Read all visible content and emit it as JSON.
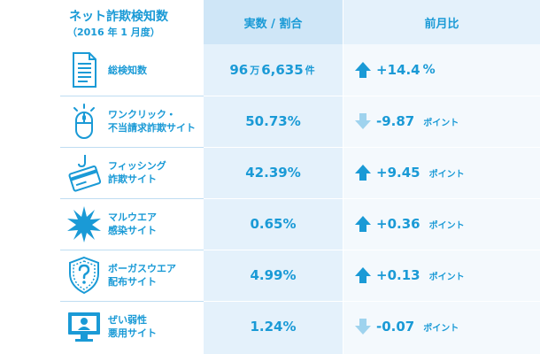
{
  "header": {
    "title": "ネット詐欺検知数",
    "subtitle": "（2016 年 1 月度）",
    "col_value": "実数 / 割合",
    "col_change": "前月比"
  },
  "colors": {
    "primary": "#1a9ad6",
    "arrow_up": "#1a9ad6",
    "arrow_down": "#9fd3ee",
    "value_column_bg": "#e4f1fb"
  },
  "rows": [
    {
      "icon": "document-icon",
      "label_line1": "総検知数",
      "label_line2": "",
      "value_num1": "96",
      "value_unit1": "万",
      "value_num2": "6,635",
      "value_unit2": "件",
      "value": "",
      "direction": "up",
      "change": "+14.4",
      "change_unit": "%"
    },
    {
      "icon": "mouse-click-icon",
      "label_line1": "ワンクリック・",
      "label_line2": "不当請求詐欺サイト",
      "value": "50.73%",
      "direction": "down",
      "change": "-9.87",
      "change_unit": "ポイント"
    },
    {
      "icon": "phishing-hook-card-icon",
      "label_line1": "フィッシング",
      "label_line2": "詐欺サイト",
      "value": "42.39%",
      "direction": "up",
      "change": "+9.45",
      "change_unit": "ポイント"
    },
    {
      "icon": "malware-burst-icon",
      "label_line1": "マルウエア",
      "label_line2": "感染サイト",
      "value": "0.65%",
      "direction": "up",
      "change": "+0.36",
      "change_unit": "ポイント"
    },
    {
      "icon": "shield-question-icon",
      "label_line1": "ボーガスウエア",
      "label_line2": "配布サイト",
      "value": "4.99%",
      "direction": "up",
      "change": "+0.13",
      "change_unit": "ポイント"
    },
    {
      "icon": "monitor-vulnerable-icon",
      "label_line1": "ぜい弱性",
      "label_line2": "悪用サイト",
      "value": "1.24%",
      "direction": "down",
      "change": "-0.07",
      "change_unit": "ポイント"
    }
  ]
}
